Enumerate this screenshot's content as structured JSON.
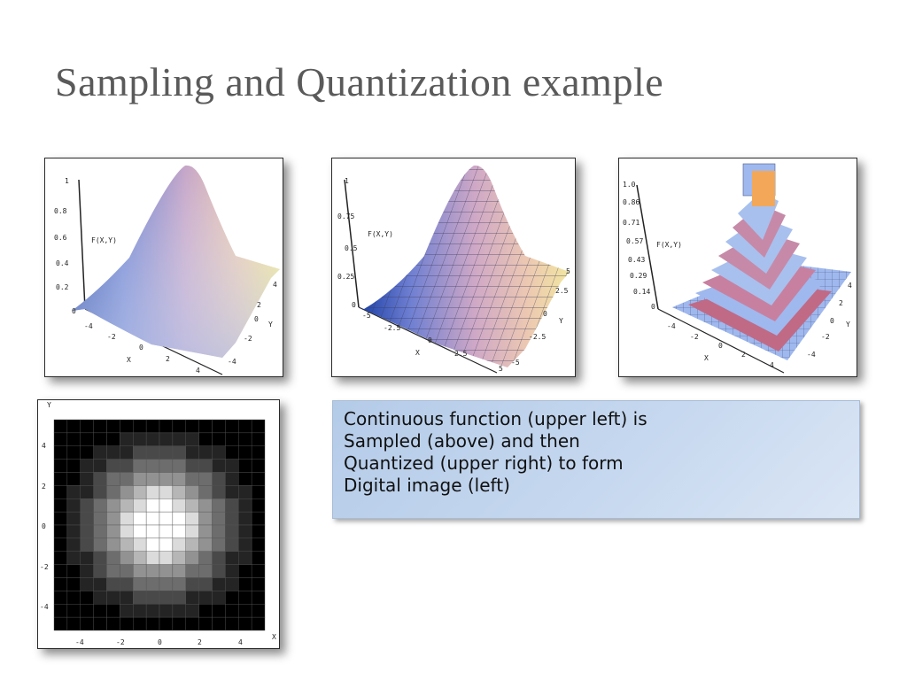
{
  "slide": {
    "title": "Sampling and Quantization example"
  },
  "caption": {
    "lines": [
      "Continuous function (upper left) is",
      "Sampled (above) and then",
      "Quantized (upper right) to form",
      "Digital image (left)"
    ]
  },
  "plots": {
    "continuous": {
      "z_label": "F(X,Y)",
      "z_ticks": [
        "1",
        "0.8",
        "0.6",
        "0.4",
        "0.2",
        "0"
      ],
      "x_label": "X",
      "x_ticks": [
        "-4",
        "-2",
        "0",
        "2",
        "4"
      ],
      "y_label": "Y",
      "y_ticks": [
        "4",
        "2",
        "0",
        "-2",
        "-4"
      ]
    },
    "sampled": {
      "z_label": "F(X,Y)",
      "z_ticks": [
        "1",
        "0.75",
        "0.5",
        "0.25",
        "0"
      ],
      "x_label": "X",
      "x_ticks": [
        "-5",
        "-2.5",
        "0",
        "2.5",
        "5"
      ],
      "y_label": "Y",
      "y_ticks": [
        "5",
        "2.5",
        "0",
        "-2.5",
        "-5"
      ]
    },
    "quantized": {
      "z_label": "F(X,Y)",
      "z_ticks": [
        "1.0",
        "0.86",
        "0.71",
        "0.57",
        "0.43",
        "0.29",
        "0.14",
        "0"
      ],
      "x_label": "X",
      "x_ticks": [
        "-4",
        "-2",
        "0",
        "2",
        "4"
      ],
      "y_label": "Y",
      "y_ticks": [
        "4",
        "2",
        "0",
        "-2",
        "-4"
      ]
    },
    "digital": {
      "x_label": "X",
      "y_label": "Y",
      "x_ticks": [
        "-4",
        "-2",
        "0",
        "2",
        "4"
      ],
      "y_ticks": [
        "4",
        "2",
        "0",
        "-2",
        "-4"
      ],
      "grid_size": 16,
      "gray_levels": 8
    }
  },
  "colors": {
    "title": "#5a5a5a",
    "caption_bg": "#c6d8ef"
  }
}
